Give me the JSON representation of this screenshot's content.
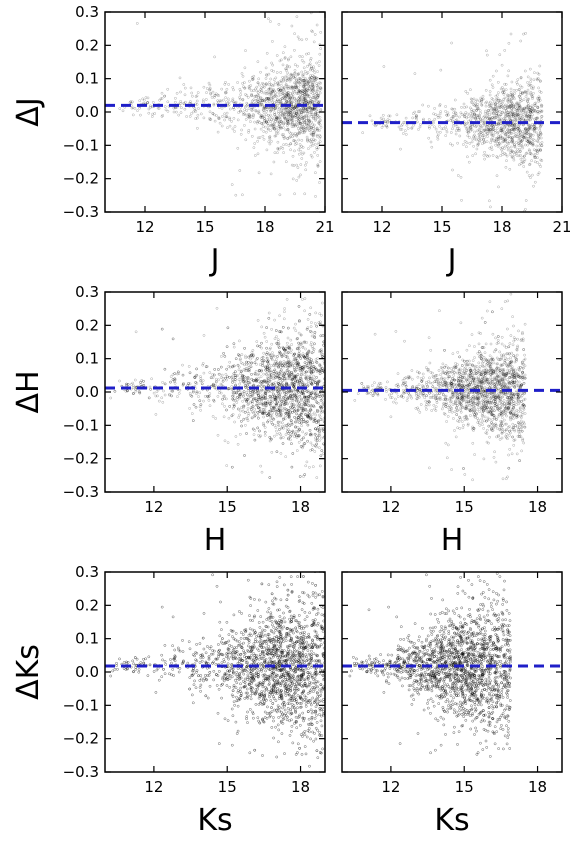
{
  "chart_data": [
    {
      "type": "scatter",
      "row": 0,
      "col": 0,
      "xlabel": "J",
      "ylabel": "ΔJ",
      "xlim": [
        10,
        21
      ],
      "ylim": [
        -0.3,
        0.3
      ],
      "xticks": [
        12,
        15,
        18,
        21
      ],
      "yticks": [
        -0.3,
        -0.2,
        -0.1,
        0.0,
        0.1,
        0.2,
        0.3
      ],
      "xtick_labels": [
        "12",
        "15",
        "18",
        "21"
      ],
      "ytick_labels": [
        "−0.3",
        "−0.2",
        "−0.1",
        "0.0",
        "0.1",
        "0.2",
        "0.3"
      ],
      "mean_offset": 0.02,
      "density": {
        "center_mag": 19.8,
        "mag_min": 10.5,
        "mag_max": 20.8,
        "peak_scatter": 0.06,
        "approx_points": 1800
      }
    },
    {
      "type": "scatter",
      "row": 0,
      "col": 1,
      "xlabel": "J",
      "ylabel": "",
      "xlim": [
        10,
        21
      ],
      "ylim": [
        -0.3,
        0.3
      ],
      "xticks": [
        12,
        15,
        18,
        21
      ],
      "yticks": [
        -0.3,
        -0.2,
        -0.1,
        0.0,
        0.1,
        0.2,
        0.3
      ],
      "xtick_labels": [
        "12",
        "15",
        "18",
        "21"
      ],
      "ytick_labels": [],
      "mean_offset": -0.032,
      "density": {
        "center_mag": 18.8,
        "mag_min": 11.0,
        "mag_max": 20.0,
        "peak_scatter": 0.05,
        "approx_points": 1400
      }
    },
    {
      "type": "scatter",
      "row": 1,
      "col": 0,
      "xlabel": "H",
      "ylabel": "ΔH",
      "xlim": [
        10,
        19
      ],
      "ylim": [
        -0.3,
        0.3
      ],
      "xticks": [
        12,
        15,
        18
      ],
      "yticks": [
        -0.3,
        -0.2,
        -0.1,
        0.0,
        0.1,
        0.2,
        0.3
      ],
      "xtick_labels": [
        "12",
        "15",
        "18"
      ],
      "ytick_labels": [
        "−0.3",
        "−0.2",
        "−0.1",
        "0.0",
        "0.1",
        "0.2",
        "0.3"
      ],
      "mean_offset": 0.012,
      "density": {
        "center_mag": 17.8,
        "mag_min": 10.2,
        "mag_max": 19.0,
        "peak_scatter": 0.08,
        "approx_points": 2800
      }
    },
    {
      "type": "scatter",
      "row": 1,
      "col": 1,
      "xlabel": "H",
      "ylabel": "",
      "xlim": [
        10,
        19
      ],
      "ylim": [
        -0.3,
        0.3
      ],
      "xticks": [
        12,
        15,
        18
      ],
      "yticks": [
        -0.3,
        -0.2,
        -0.1,
        0.0,
        0.1,
        0.2,
        0.3
      ],
      "xtick_labels": [
        "12",
        "15",
        "18"
      ],
      "ytick_labels": [],
      "mean_offset": 0.005,
      "density": {
        "center_mag": 16.4,
        "mag_min": 10.5,
        "mag_max": 17.5,
        "peak_scatter": 0.06,
        "approx_points": 2200
      }
    },
    {
      "type": "scatter",
      "row": 2,
      "col": 0,
      "xlabel": "Ks",
      "ylabel": "ΔKs",
      "xlim": [
        10,
        19
      ],
      "ylim": [
        -0.3,
        0.3
      ],
      "xticks": [
        12,
        15,
        18
      ],
      "yticks": [
        -0.3,
        -0.2,
        -0.1,
        0.0,
        0.1,
        0.2,
        0.3
      ],
      "xtick_labels": [
        "12",
        "15",
        "18"
      ],
      "ytick_labels": [
        "−0.3",
        "−0.2",
        "−0.1",
        "0.0",
        "0.1",
        "0.2",
        "0.3"
      ],
      "mean_offset": 0.018,
      "density": {
        "center_mag": 17.5,
        "mag_min": 10.2,
        "mag_max": 19.0,
        "peak_scatter": 0.09,
        "approx_points": 4000
      }
    },
    {
      "type": "scatter",
      "row": 2,
      "col": 1,
      "xlabel": "Ks",
      "ylabel": "",
      "xlim": [
        10,
        19
      ],
      "ylim": [
        -0.3,
        0.3
      ],
      "xticks": [
        12,
        15,
        18
      ],
      "yticks": [
        -0.3,
        -0.2,
        -0.1,
        0.0,
        0.1,
        0.2,
        0.3
      ],
      "xtick_labels": [
        "12",
        "15",
        "18"
      ],
      "ytick_labels": [],
      "mean_offset": 0.018,
      "density": {
        "center_mag": 15.2,
        "mag_min": 10.3,
        "mag_max": 16.9,
        "peak_scatter": 0.08,
        "approx_points": 3800
      }
    }
  ],
  "colors": {
    "points": "#000000",
    "mean_line": "#1f1fc8",
    "axes": "#000000"
  },
  "grid": false,
  "layout": "3x2",
  "mean_line_style": "dashed"
}
